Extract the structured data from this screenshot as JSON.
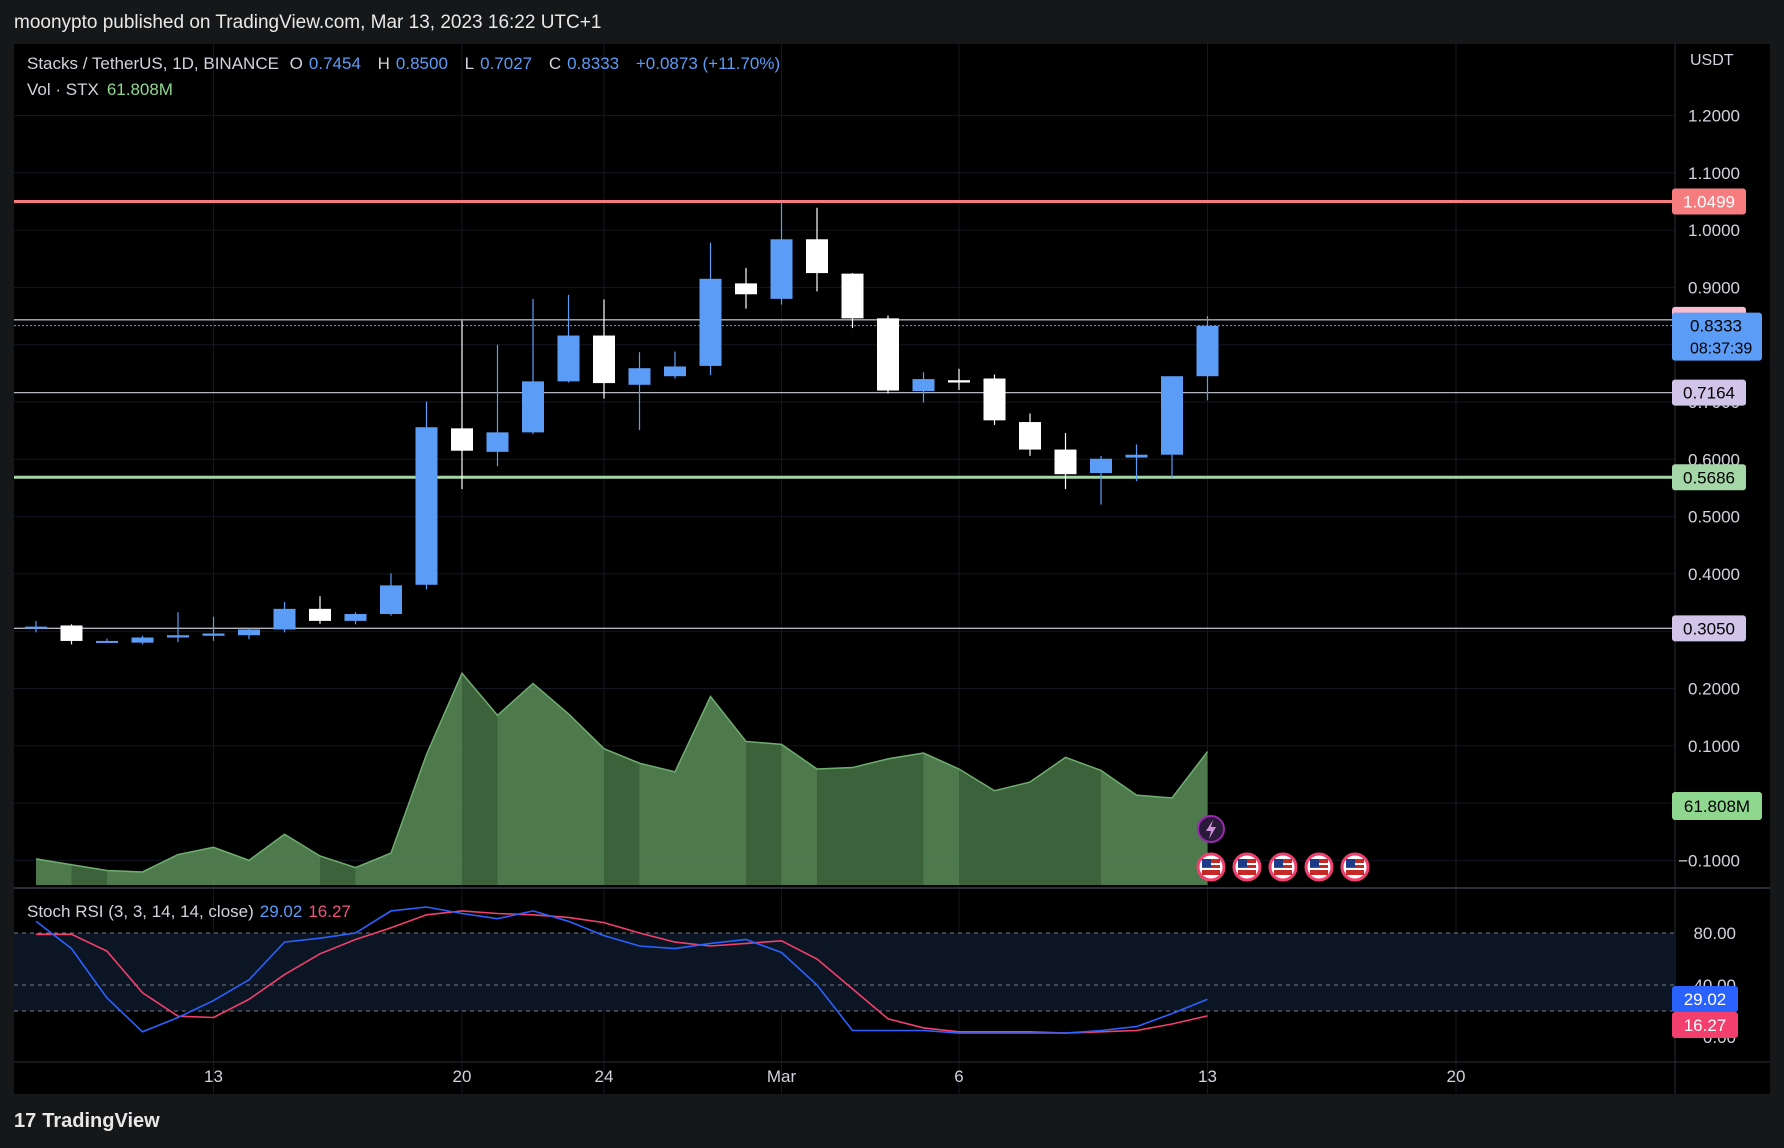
{
  "header": {
    "publish_text": "moonypto published on TradingView.com, Mar 13, 2023 16:22 UTC+1"
  },
  "legend": {
    "symbol": "Stacks / TetherUS, 1D, BINANCE",
    "open_label": "O",
    "open": "0.7454",
    "high_label": "H",
    "high": "0.8500",
    "low_label": "L",
    "low": "0.7027",
    "close_label": "C",
    "close": "0.8333",
    "change": "+0.0873 (+11.70%)",
    "vol_label": "Vol · STX",
    "vol_value": "61.808M",
    "stoch_label": "Stoch RSI (3, 3, 14, 14, close)",
    "stoch_k": "29.02",
    "stoch_d": "16.27"
  },
  "price_axis": {
    "currency": "USDT",
    "ticks": [
      "1.2000",
      "1.1000",
      "1.0000",
      "0.9000",
      "0.8000",
      "0.7000",
      "0.6000",
      "0.5000",
      "0.4000",
      "0.3000",
      "0.2000",
      "0.1000",
      "−0.1000"
    ]
  },
  "stoch_axis": {
    "ticks": [
      "80.00",
      "40.00",
      "0.00"
    ]
  },
  "x_axis": {
    "ticks": [
      {
        "label": "13",
        "idx": 5
      },
      {
        "label": "20",
        "idx": 12
      },
      {
        "label": "24",
        "idx": 16
      },
      {
        "label": "Mar",
        "idx": 21
      },
      {
        "label": "6",
        "idx": 26
      },
      {
        "label": "13",
        "idx": 33
      },
      {
        "label": "20",
        "idx": 40
      }
    ]
  },
  "footer": {
    "logo_glyph": "17",
    "logo_text": "TradingView"
  },
  "colors": {
    "up": "#5b9cf6",
    "down": "#ffffff",
    "resistance": "#f77c80",
    "support": "#a5d6a7",
    "level": "#b2b5be",
    "vol_fill": "#4c7a4c",
    "stoch_k": "#2962ff",
    "stoch_d": "#f23f6e"
  },
  "icons": {
    "flash_icon": "lightning-bolt",
    "flag_icon": "us-flag"
  },
  "chart_data": {
    "type": "candlestick",
    "title": "Stacks / TetherUS, 1D, BINANCE",
    "ylabel": "USDT",
    "ylim": [
      -0.1,
      1.2
    ],
    "candles": [
      {
        "o": 0.305,
        "h": 0.318,
        "l": 0.298,
        "c": 0.308
      },
      {
        "o": 0.31,
        "h": 0.312,
        "l": 0.277,
        "c": 0.283
      },
      {
        "o": 0.283,
        "h": 0.287,
        "l": 0.28,
        "c": 0.283
      },
      {
        "o": 0.28,
        "h": 0.292,
        "l": 0.277,
        "c": 0.289
      },
      {
        "o": 0.289,
        "h": 0.333,
        "l": 0.281,
        "c": 0.293
      },
      {
        "o": 0.292,
        "h": 0.325,
        "l": 0.283,
        "c": 0.296
      },
      {
        "o": 0.293,
        "h": 0.305,
        "l": 0.286,
        "c": 0.303
      },
      {
        "o": 0.303,
        "h": 0.351,
        "l": 0.298,
        "c": 0.339
      },
      {
        "o": 0.339,
        "h": 0.361,
        "l": 0.313,
        "c": 0.318
      },
      {
        "o": 0.318,
        "h": 0.333,
        "l": 0.312,
        "c": 0.33
      },
      {
        "o": 0.33,
        "h": 0.401,
        "l": 0.327,
        "c": 0.38
      },
      {
        "o": 0.381,
        "h": 0.701,
        "l": 0.373,
        "c": 0.656
      },
      {
        "o": 0.654,
        "h": 0.842,
        "l": 0.548,
        "c": 0.615
      },
      {
        "o": 0.613,
        "h": 0.8,
        "l": 0.588,
        "c": 0.647
      },
      {
        "o": 0.647,
        "h": 0.88,
        "l": 0.644,
        "c": 0.736
      },
      {
        "o": 0.736,
        "h": 0.887,
        "l": 0.734,
        "c": 0.816
      },
      {
        "o": 0.816,
        "h": 0.879,
        "l": 0.706,
        "c": 0.733
      },
      {
        "o": 0.73,
        "h": 0.787,
        "l": 0.651,
        "c": 0.759
      },
      {
        "o": 0.745,
        "h": 0.788,
        "l": 0.741,
        "c": 0.762
      },
      {
        "o": 0.763,
        "h": 0.978,
        "l": 0.747,
        "c": 0.915
      },
      {
        "o": 0.907,
        "h": 0.934,
        "l": 0.863,
        "c": 0.888
      },
      {
        "o": 0.88,
        "h": 1.049,
        "l": 0.87,
        "c": 0.984
      },
      {
        "o": 0.984,
        "h": 1.039,
        "l": 0.893,
        "c": 0.925
      },
      {
        "o": 0.924,
        "h": 0.925,
        "l": 0.829,
        "c": 0.846
      },
      {
        "o": 0.846,
        "h": 0.851,
        "l": 0.715,
        "c": 0.72
      },
      {
        "o": 0.719,
        "h": 0.752,
        "l": 0.699,
        "c": 0.74
      },
      {
        "o": 0.738,
        "h": 0.758,
        "l": 0.721,
        "c": 0.734
      },
      {
        "o": 0.741,
        "h": 0.748,
        "l": 0.66,
        "c": 0.668
      },
      {
        "o": 0.665,
        "h": 0.68,
        "l": 0.606,
        "c": 0.617
      },
      {
        "o": 0.617,
        "h": 0.646,
        "l": 0.548,
        "c": 0.574
      },
      {
        "o": 0.576,
        "h": 0.606,
        "l": 0.521,
        "c": 0.601
      },
      {
        "o": 0.603,
        "h": 0.626,
        "l": 0.562,
        "c": 0.608
      },
      {
        "o": 0.608,
        "h": 0.743,
        "l": 0.568,
        "c": 0.745
      },
      {
        "o": 0.745,
        "h": 0.85,
        "l": 0.703,
        "c": 0.833
      }
    ],
    "volume_series": {
      "name": "Vol · STX",
      "values": [
        18,
        14,
        10,
        9,
        21,
        26,
        17,
        35,
        20,
        12,
        22,
        90,
        146,
        117,
        139,
        118,
        94,
        84,
        78,
        130,
        99,
        97,
        80,
        81,
        87,
        91,
        80,
        65,
        71,
        88,
        79,
        62,
        60,
        92
      ]
    },
    "stoch_rsi": {
      "k": [
        89,
        68,
        30,
        4,
        15,
        28,
        44,
        73,
        76,
        80,
        97,
        100,
        95,
        91,
        97,
        89,
        78,
        70,
        68,
        72,
        75,
        65,
        40,
        5,
        5,
        5,
        3,
        3,
        3,
        3,
        5,
        8,
        18,
        29.02
      ],
      "d": [
        79,
        79,
        66,
        34,
        16,
        15,
        29,
        48,
        64,
        75,
        84,
        94,
        97,
        95,
        94,
        92,
        88,
        80,
        73,
        70,
        72,
        74,
        60,
        37,
        14,
        7,
        4,
        4,
        4,
        3,
        4,
        5,
        10,
        16.27
      ],
      "ylim": [
        0,
        100
      ]
    },
    "horizontal_levels": [
      {
        "value": 1.0499,
        "label": "1.0499",
        "color": "#f77c80"
      },
      {
        "value": 0.8434,
        "label": "0.8434",
        "color": "#b2b5be"
      },
      {
        "value": 0.7164,
        "label": "0.7164",
        "color": "#b2b5be"
      },
      {
        "value": 0.5686,
        "label": "0.5686",
        "color": "#a5d6a7"
      },
      {
        "value": 0.305,
        "label": "0.3050",
        "color": "#b2b5be"
      }
    ],
    "last_price": {
      "value": 0.8333,
      "label": "0.8333",
      "countdown": "08:37:39"
    },
    "volume_label": "61.808M"
  }
}
